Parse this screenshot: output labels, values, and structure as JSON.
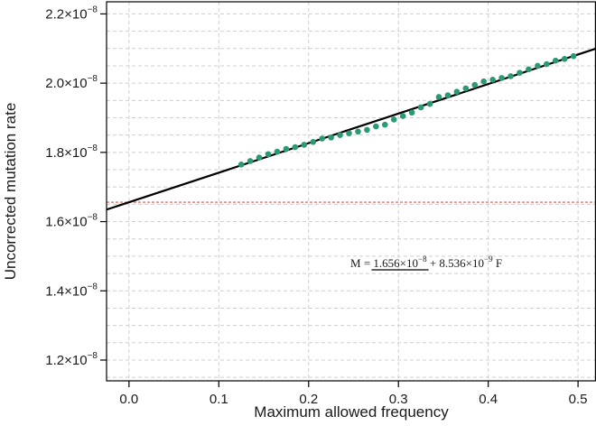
{
  "chart_data": {
    "type": "scatter",
    "xlabel": "Maximum allowed frequency",
    "ylabel": "Uncorrected mutation rate",
    "xlim": [
      -0.025,
      0.52
    ],
    "ylim": [
      1.14e-08,
      2.235e-08
    ],
    "x_ticks": [
      0.0,
      0.1,
      0.2,
      0.3,
      0.4,
      0.5
    ],
    "x_tick_labels": [
      "0.0",
      "0.1",
      "0.2",
      "0.3",
      "0.4",
      "0.5"
    ],
    "y_ticks": [
      1.2e-08,
      1.4e-08,
      1.6e-08,
      1.8e-08,
      2e-08,
      2.2e-08
    ],
    "y_tick_labels": [
      {
        "mantissa": "1.2×10",
        "exp": "−8"
      },
      {
        "mantissa": "1.4×10",
        "exp": "−8"
      },
      {
        "mantissa": "1.6×10",
        "exp": "−8"
      },
      {
        "mantissa": "1.8×10",
        "exp": "−8"
      },
      {
        "mantissa": "2.0×10",
        "exp": "−8"
      },
      {
        "mantissa": "2.2×10",
        "exp": "−8"
      }
    ],
    "grid": true,
    "series": [
      {
        "kind": "points",
        "color": "#2a9a74",
        "points": [
          [
            0.125,
            1.765e-08
          ],
          [
            0.135,
            1.775e-08
          ],
          [
            0.145,
            1.785e-08
          ],
          [
            0.155,
            1.795e-08
          ],
          [
            0.165,
            1.802e-08
          ],
          [
            0.175,
            1.81e-08
          ],
          [
            0.185,
            1.815e-08
          ],
          [
            0.195,
            1.822e-08
          ],
          [
            0.205,
            1.83e-08
          ],
          [
            0.215,
            1.84e-08
          ],
          [
            0.225,
            1.843e-08
          ],
          [
            0.235,
            1.85e-08
          ],
          [
            0.245,
            1.855e-08
          ],
          [
            0.255,
            1.86e-08
          ],
          [
            0.265,
            1.865e-08
          ],
          [
            0.275,
            1.875e-08
          ],
          [
            0.285,
            1.88e-08
          ],
          [
            0.295,
            1.895e-08
          ],
          [
            0.305,
            1.905e-08
          ],
          [
            0.315,
            1.915e-08
          ],
          [
            0.325,
            1.93e-08
          ],
          [
            0.335,
            1.94e-08
          ],
          [
            0.345,
            1.96e-08
          ],
          [
            0.355,
            1.965e-08
          ],
          [
            0.365,
            1.975e-08
          ],
          [
            0.375,
            1.985e-08
          ],
          [
            0.385,
            1.995e-08
          ],
          [
            0.395,
            2.005e-08
          ],
          [
            0.405,
            2.01e-08
          ],
          [
            0.415,
            2.015e-08
          ],
          [
            0.425,
            2.02e-08
          ],
          [
            0.435,
            2.03e-08
          ],
          [
            0.445,
            2.04e-08
          ],
          [
            0.455,
            2.05e-08
          ],
          [
            0.465,
            2.055e-08
          ],
          [
            0.475,
            2.065e-08
          ],
          [
            0.485,
            2.07e-08
          ],
          [
            0.495,
            2.078e-08
          ]
        ]
      },
      {
        "kind": "regression-line",
        "color": "#000000",
        "intercept": 1.656e-08,
        "slope": 8.536e-09
      },
      {
        "kind": "reference-line",
        "color": "#e05a4f",
        "y": 1.656e-08
      }
    ],
    "annotation": {
      "lhs": "M",
      "eq": " = ",
      "intercept_text": "1.656×10",
      "intercept_exp": "−8",
      "plus": " + 8.536×10",
      "slope_exp": "−9",
      "suffix": " F"
    }
  }
}
